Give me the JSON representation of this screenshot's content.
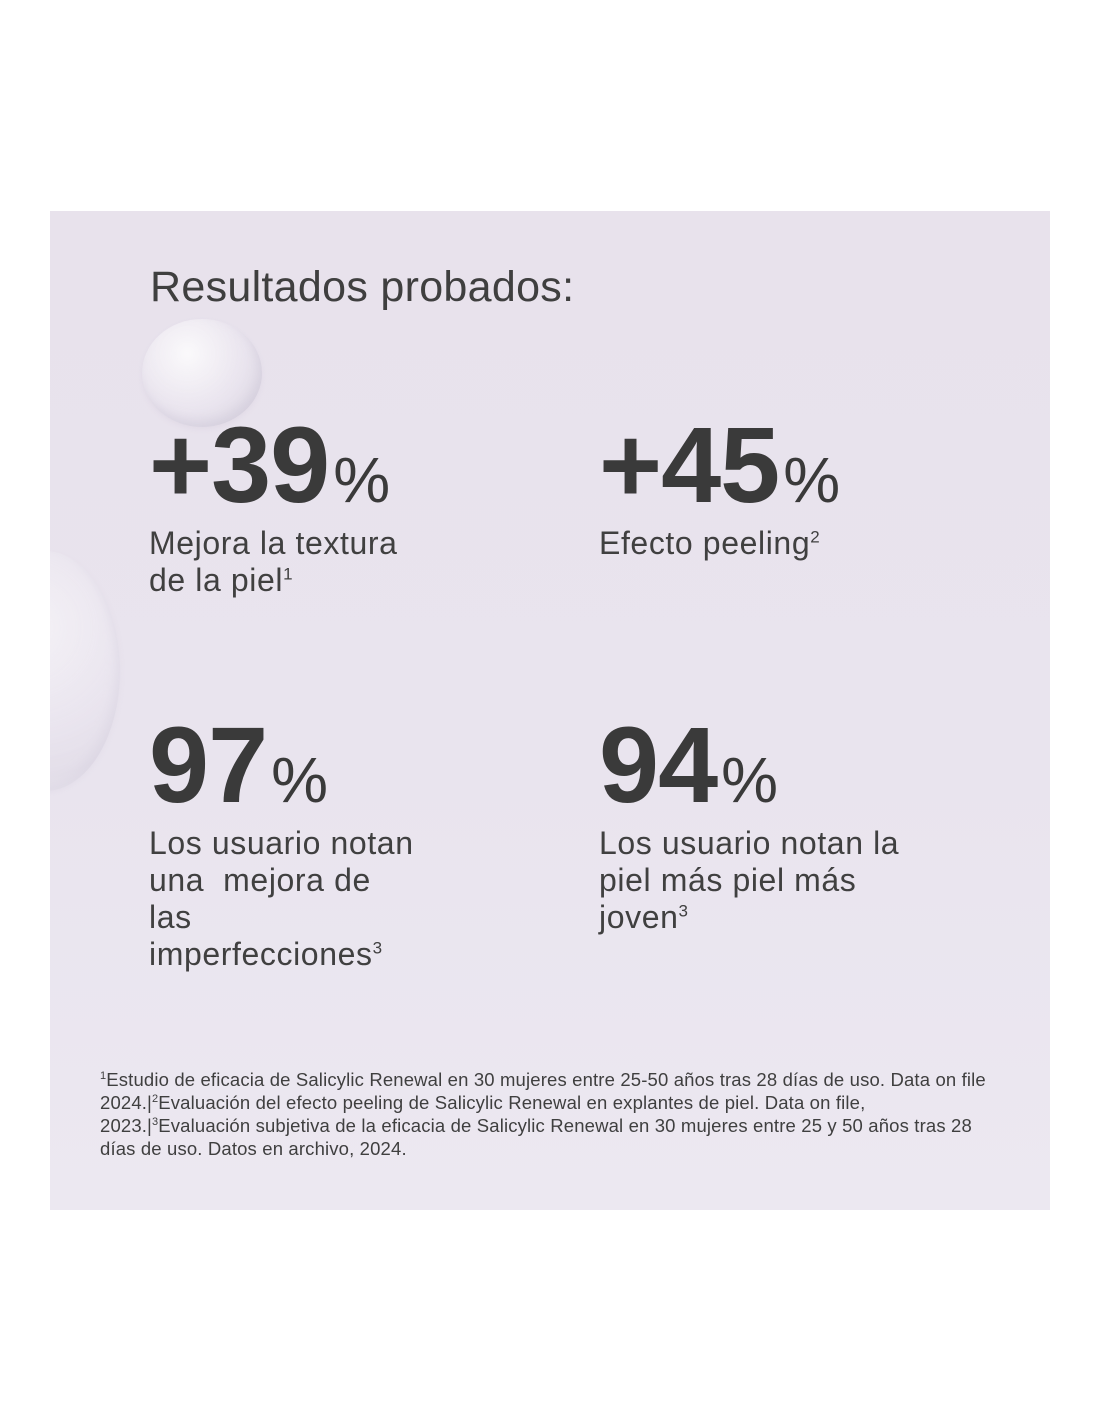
{
  "heading": "Resultados probados:",
  "stats": [
    {
      "value": "+39",
      "unit": "%",
      "description": "Mejora la textura de la piel",
      "footnote_ref": "1"
    },
    {
      "value": "+45",
      "unit": "%",
      "description": "Efecto peeling",
      "footnote_ref": "2"
    },
    {
      "value": "97",
      "unit": "%",
      "description_lines": [
        "Los usuario notan",
        "una  mejora de",
        "las",
        "imperfecciones"
      ],
      "footnote_ref": "3"
    },
    {
      "value": "94",
      "unit": "%",
      "description_lines": [
        "Los usuario notan la",
        "piel más piel más",
        "joven"
      ],
      "footnote_ref": "3"
    }
  ],
  "stat1_lines": [
    "Mejora la textura",
    "de la piel"
  ],
  "footnotes": [
    {
      "ref": "1",
      "text": "Estudio de eficacia de Salicylic Renewal en 30 mujeres entre 25-50 años tras 28 días de uso. Data on file 2024.|"
    },
    {
      "ref": "2",
      "text": "Evaluación del efecto peeling de Salicylic Renewal en explantes de piel. Data on file, 2023.|"
    },
    {
      "ref": "3",
      "text": "Evaluación subjetiva de la eficacia de Salicylic Renewal en 30 mujeres entre 25 y 50 años tras 28 días de uso. Datos en archivo, 2024."
    }
  ],
  "colors": {
    "panel_background": "#e9e4ee",
    "text": "#3d3d3d"
  }
}
